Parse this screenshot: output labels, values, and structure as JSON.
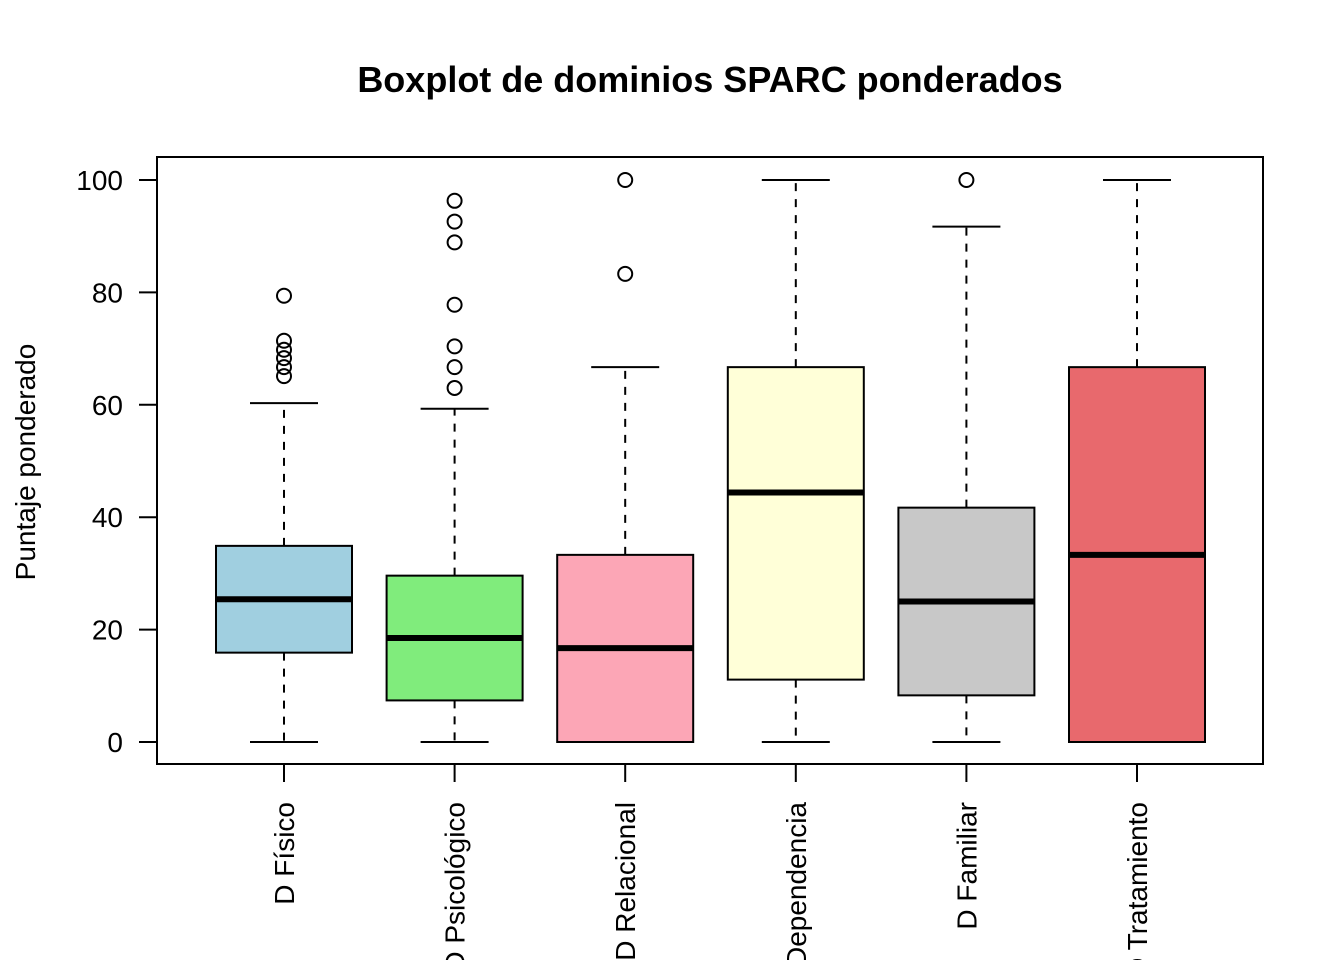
{
  "chart_data": {
    "type": "boxplot",
    "title": "Boxplot de dominios SPARC ponderados",
    "xlabel": "",
    "ylabel": "Puntaje ponderado",
    "ylim": [
      -4,
      104
    ],
    "yticks": [
      0,
      20,
      40,
      60,
      80,
      100
    ],
    "ytick_labels": [
      "0",
      "20",
      "40",
      "60",
      "80",
      "100"
    ],
    "grid": false,
    "categories": [
      "D Físico",
      "D Psicológico",
      "D Relacional",
      "D Dependencia",
      "D Familiar",
      "D Tratamiento"
    ],
    "boxes": [
      {
        "label": "D Físico",
        "min": 0,
        "q1": 15.9,
        "median": 25.4,
        "q3": 34.9,
        "max": 60.3,
        "outliers": [
          65.1,
          66.7,
          68.3,
          69.8,
          71.4,
          79.4
        ],
        "color": "#A0CFE0"
      },
      {
        "label": "D Psicológico",
        "min": 0,
        "q1": 7.4,
        "median": 18.5,
        "q3": 29.6,
        "max": 59.3,
        "outliers": [
          63.0,
          66.7,
          70.4,
          77.8,
          88.9,
          92.6,
          96.3
        ],
        "color": "#80EC7C"
      },
      {
        "label": "D Relacional",
        "min": 0,
        "q1": 0,
        "median": 16.7,
        "q3": 33.3,
        "max": 66.7,
        "outliers": [
          83.3,
          100
        ],
        "color": "#FCA6B6"
      },
      {
        "label": "D Dependencia",
        "min": 0,
        "q1": 11.1,
        "median": 44.4,
        "q3": 66.7,
        "max": 100,
        "outliers": [],
        "color": "#FFFFD8"
      },
      {
        "label": "D Familiar",
        "min": 0,
        "q1": 8.3,
        "median": 25.0,
        "q3": 41.7,
        "max": 91.7,
        "outliers": [
          100
        ],
        "color": "#C8C8C8"
      },
      {
        "label": "D Tratamiento",
        "min": 0,
        "q1": 0,
        "median": 33.3,
        "q3": 66.7,
        "max": 100,
        "outliers": [],
        "color": "#E8696D"
      }
    ]
  }
}
